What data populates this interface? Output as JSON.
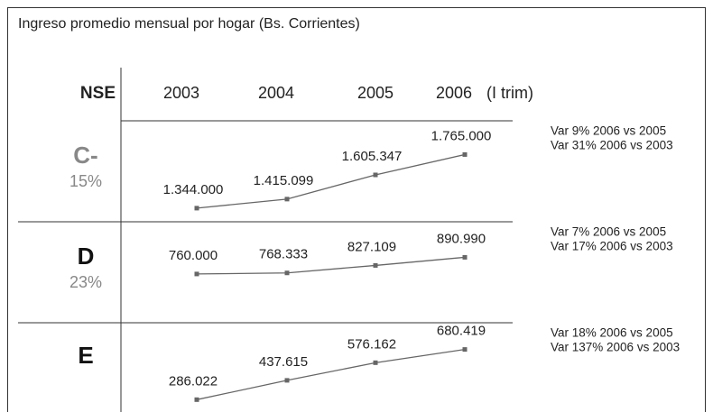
{
  "chart_data": {
    "type": "line",
    "title": "Ingreso promedio mensual por hogar (Bs. Corrientes)",
    "row_header": "NSE",
    "categories": [
      "2003",
      "2004",
      "2005",
      "2006"
    ],
    "category_note": "(I trim)",
    "color": "#666666",
    "panels": [
      {
        "name": "C-",
        "name_color": "#888888",
        "share": "15%",
        "values": [
          1344000,
          1415099,
          1605347,
          1765000
        ],
        "value_labels": [
          "1.344.000",
          "1.415.099",
          "1.605.347",
          "1.765.000"
        ],
        "ylim": [
          1230000,
          2030000
        ],
        "notes": [
          "Var 9% 2006 vs 2005",
          "Var 31% 2006 vs 2003"
        ]
      },
      {
        "name": "D",
        "name_color": "#111111",
        "share": "23%",
        "values": [
          760000,
          768333,
          827109,
          890990
        ],
        "value_labels": [
          "760.000",
          "768.333",
          "827.109",
          "890.990"
        ],
        "ylim": [
          370000,
          1170000
        ],
        "notes": [
          "Var 7% 2006 vs 2005",
          "Var 17% 2006 vs 2003"
        ]
      },
      {
        "name": "E",
        "name_color": "#111111",
        "values": [
          286022,
          437615,
          576162,
          680419
        ],
        "value_labels": [
          "286.022",
          "437.615",
          "576.162",
          "680.419"
        ],
        "ylim": [
          90000,
          890000
        ],
        "notes": [
          "Var 18% 2006 vs 2005",
          "Var 137% 2006 vs 2003"
        ]
      }
    ]
  }
}
